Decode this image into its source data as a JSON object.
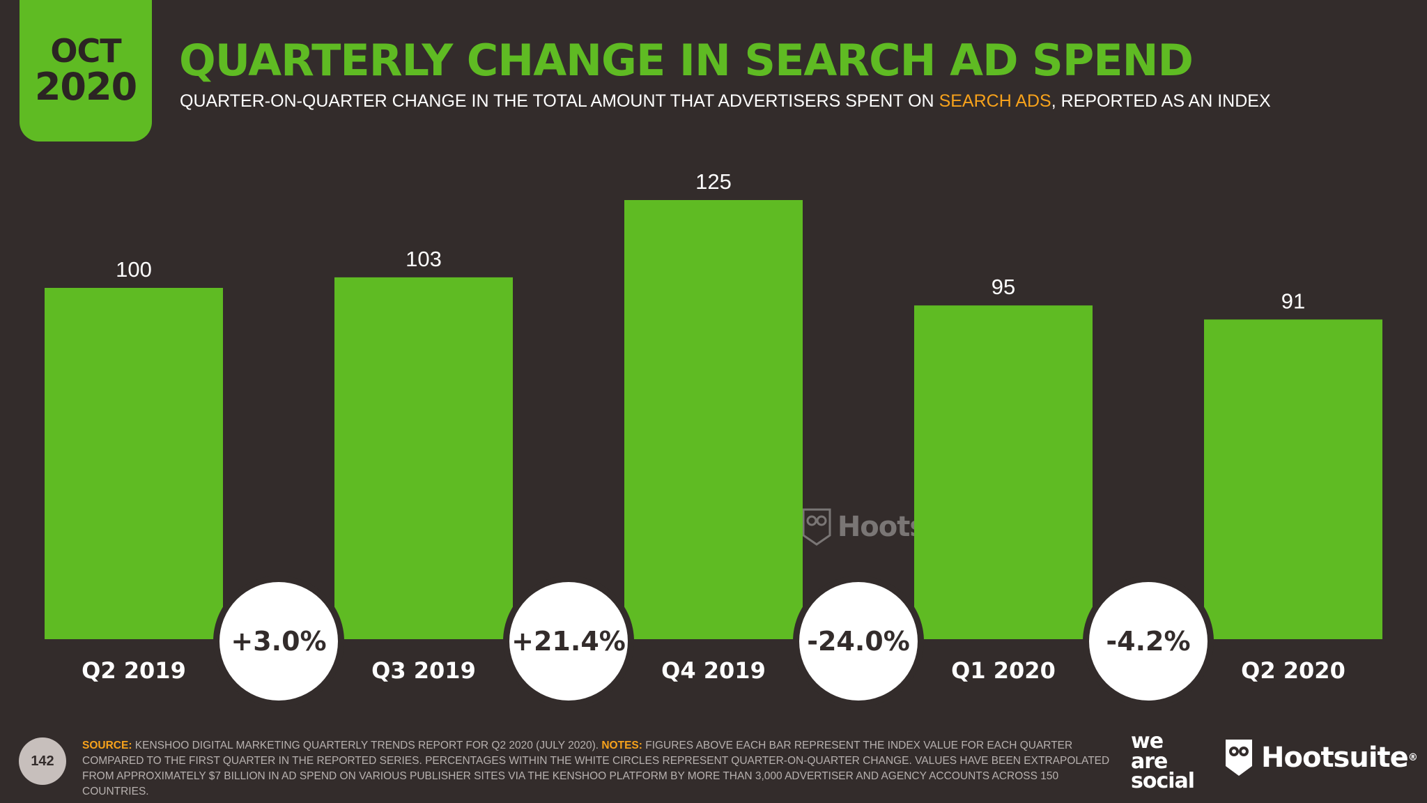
{
  "header": {
    "month": "OCT",
    "year": "2020",
    "title": "QUARTERLY CHANGE IN SEARCH AD SPEND",
    "subtitle_pre": "QUARTER-ON-QUARTER CHANGE IN THE TOTAL AMOUNT THAT ADVERTISERS SPENT ON ",
    "subtitle_highlight": "SEARCH ADS",
    "subtitle_post": ", REPORTED AS AN INDEX"
  },
  "chart_data": {
    "type": "bar",
    "title": "QUARTERLY CHANGE IN SEARCH AD SPEND",
    "categories": [
      "Q2 2019",
      "Q3 2019",
      "Q4 2019",
      "Q1 2020",
      "Q2 2020"
    ],
    "values": [
      100,
      103,
      125,
      95,
      91
    ],
    "value_labels": [
      "100",
      "103",
      "125",
      "95",
      "91"
    ],
    "changes": [
      "+3.0%",
      "+21.4%",
      "-24.0%",
      "-4.2%"
    ],
    "xlabel": "",
    "ylabel": "",
    "ylim": [
      0,
      125
    ],
    "grid": false,
    "legend": "none"
  },
  "footer": {
    "source_label": "SOURCE:",
    "source_text": " KENSHOO DIGITAL MARKETING QUARTERLY TRENDS REPORT FOR Q2 2020 (JULY 2020). ",
    "notes_label": "NOTES:",
    "notes_text": " FIGURES ABOVE EACH BAR REPRESENT THE INDEX VALUE FOR EACH QUARTER COMPARED TO THE FIRST QUARTER IN THE REPORTED SERIES. PERCENTAGES WITHIN THE WHITE CIRCLES REPRESENT QUARTER-ON-QUARTER CHANGE. VALUES HAVE BEEN EXTRAPOLATED FROM APPROXIMATELY $7 BILLION IN AD SPEND ON VARIOUS PUBLISHER SITES VIA THE KENSHOO PLATFORM BY MORE THAN 3,000 ADVERTISER AND AGENCY ACCOUNTS ACROSS 150 COUNTRIES.",
    "page_number": "142"
  },
  "brand": {
    "was_line1": "we",
    "was_line2": "are",
    "was_line3": "social",
    "hootsuite": "Hootsuite",
    "trademark": "®"
  },
  "colors": {
    "background": "#332c2b",
    "bar": "#5fbb23",
    "accent": "#f7a21b",
    "circle": "#ffffff",
    "text": "#ffffff"
  }
}
